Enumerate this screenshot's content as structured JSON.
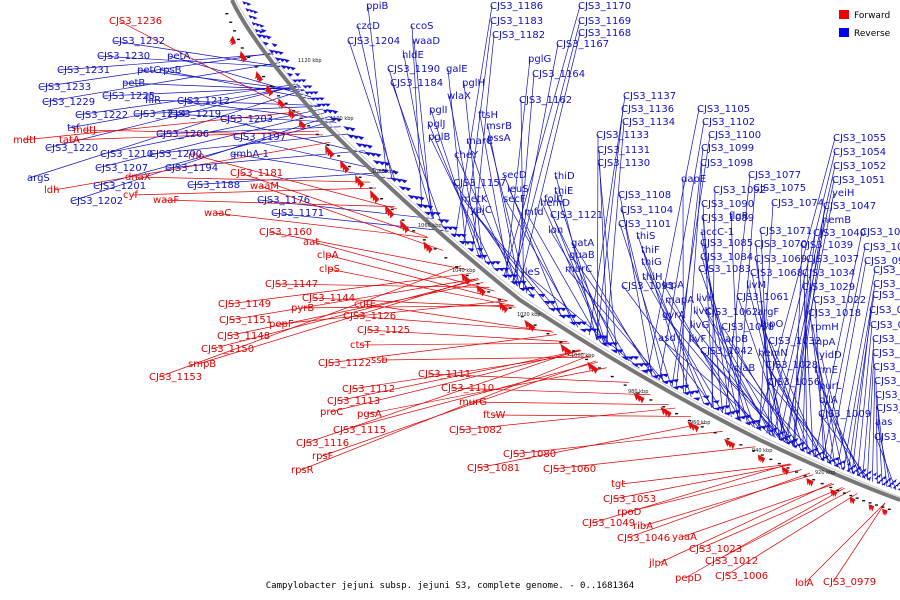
{
  "title": "Campylobacter jejuni subsp. jejuni S3, complete genome. - 0..1681364",
  "legend": [
    {
      "label": "Forward",
      "color": "#ee0000"
    },
    {
      "label": "Reverse",
      "color": "#0000ee"
    }
  ],
  "colors": {
    "forward": "#e00000",
    "reverse": "#1010c0",
    "backbone": "#777777"
  },
  "ticks": [
    "1120 kbp",
    "1100 kbp",
    "1080 kbp",
    "1060 kbp",
    "1040 kbp",
    "1020 kbp",
    "1000 kbp",
    "980 kbp",
    "960 kbp",
    "940 kbp",
    "920 kbp"
  ],
  "reverse_genes": [
    "ppiB",
    "czcD",
    "ccoS",
    "CJS3_1186",
    "CJS3_1170",
    "CJS3_1204",
    "waaD",
    "CJS3_1183",
    "CJS3_1169",
    "hldE",
    "CJS3_1182",
    "CJS3_1168",
    "CJS3_1190",
    "galE",
    "CJS3_1167",
    "CJS3_1184",
    "pglH",
    "pglG",
    "wlaX",
    "pglI",
    "CJS3_1164",
    "pglJ",
    "ftsH",
    "pglB",
    "pssA",
    "CJS3_1162",
    "cheY",
    "msrB",
    "marC",
    "CJS3_1233",
    "CJS3_1232",
    "CJS3_1230",
    "petA",
    "CJS3_1231",
    "petC",
    "rpsB",
    "petB",
    "CJS3_1229",
    "CJS3_1225",
    "fliR",
    "CJS3_1219",
    "CJS3_1212",
    "CJS3_1222",
    "CJS3_1214",
    "tsf",
    "CJS3_1220",
    "CJS3_1210",
    "CJS3_1207",
    "CJS3_1201",
    "CJS3_1202",
    "CJS3_1206",
    "CJS3_1200",
    "CJS3_1194",
    "CJS3_1188",
    "CJS3_1203",
    "CJS3_1197",
    "gmhA-1",
    "CJS3_1176",
    "CJS3_1171",
    "argS",
    "CJS3_1157",
    "metK",
    "yajC",
    "secD",
    "leuS",
    "secF",
    "folC",
    "mfd",
    "thiD",
    "thiE",
    "hemD",
    "CJS3_1121",
    "lon",
    "ileS",
    "gatA",
    "guaB",
    "murC",
    "CJS3_1137",
    "CJS3_1136",
    "CJS3_1134",
    "CJS3_1133",
    "CJS3_1131",
    "CJS3_1130",
    "CJS3_1108",
    "CJS3_1104",
    "CJS3_1101",
    "thiS",
    "thiF",
    "thiG",
    "thiH",
    "CJS3_1091",
    "CJS3_1105",
    "CJS3_1102",
    "CJS3_1100",
    "CJS3_1099",
    "CJS3_1098",
    "dapE",
    "CJS3_1092",
    "CJS3_1090",
    "CJS3_1089",
    "accC-1",
    "CJS3_1085",
    "CJS3_1084",
    "CJS3_1083",
    "lepA",
    "mapA",
    "gyrA",
    "asd",
    "CJS3_1077",
    "CJS3_1075",
    "CJS3_1074",
    "flgR",
    "CJS3_1071",
    "CJS3_1070",
    "CJS3_1069",
    "CJS3_1068",
    "livM",
    "livH",
    "livK",
    "livG",
    "livF",
    "CJS3_1061",
    "CJS3_1062",
    "CJS3_1058",
    "aroB",
    "CJS3_1042",
    "argF",
    "hipO",
    "CJS3_1032",
    "hemN",
    "cjaB",
    "CJS3_1028",
    "CJS3_1056",
    "CJS3_1055",
    "CJS3_1054",
    "CJS3_1052",
    "CJS3_1051",
    "yeiH",
    "CJS3_1047",
    "hemB",
    "CJS3_1040",
    "CJS3_1039",
    "CJS3_1037",
    "CJS3_1034",
    "CJS3_1029",
    "CJS3_1022",
    "CJS3_1018",
    "rpmH",
    "rnpA",
    "yidD",
    "trmE",
    "purL",
    "djlA",
    "CJS3_1009",
    "CJS3_1002",
    "CJS3_1001",
    "CJS3_0997",
    "CJS3_0993",
    "CJS3_0992",
    "CJS3_0991",
    "CJS3_0990",
    "CJS3_0989",
    "CJS3_0987",
    "CJS3_0986",
    "CJS3_0984",
    "CJS3_0983",
    "CJS3_0982",
    "CJS3_0981",
    "aas",
    "CJS3_0996"
  ],
  "forward_genes": [
    "CJS3_1236",
    "mdtI",
    "tatA",
    "mdtJ",
    "ldh",
    "cyf",
    "dnaX",
    "rho",
    "waaM",
    "waaF",
    "waaC",
    "CJS3_1181",
    "CJS3_1160",
    "aat",
    "clpA",
    "clpS",
    "CJS3_1147",
    "CJS3_1144",
    "CJS3_1149",
    "CJS3_1151",
    "CJS3_1148",
    "CJS3_1150",
    "smpB",
    "CJS3_1153",
    "pyrB",
    "pepF",
    "cutE",
    "CJS3_1126",
    "CJS3_1125",
    "ctsT",
    "CJS3_1122",
    "ssb",
    "CJS3_1111",
    "CJS3_1112",
    "CJS3_1110",
    "CJS3_1113",
    "proC",
    "pgsA",
    "CJS3_1115",
    "CJS3_1116",
    "rpsF",
    "rpsR",
    "murG",
    "ftsW",
    "CJS3_1082",
    "CJS3_1080",
    "CJS3_1081",
    "CJS3_1060",
    "tgt",
    "CJS3_1053",
    "rpoD",
    "CJS3_1049",
    "ribA",
    "CJS3_1046",
    "yaaA",
    "CJS3_1023",
    "CJS3_1012",
    "jlpA",
    "pepD",
    "CJS3_1006",
    "lolA",
    "CJS3_0979"
  ]
}
